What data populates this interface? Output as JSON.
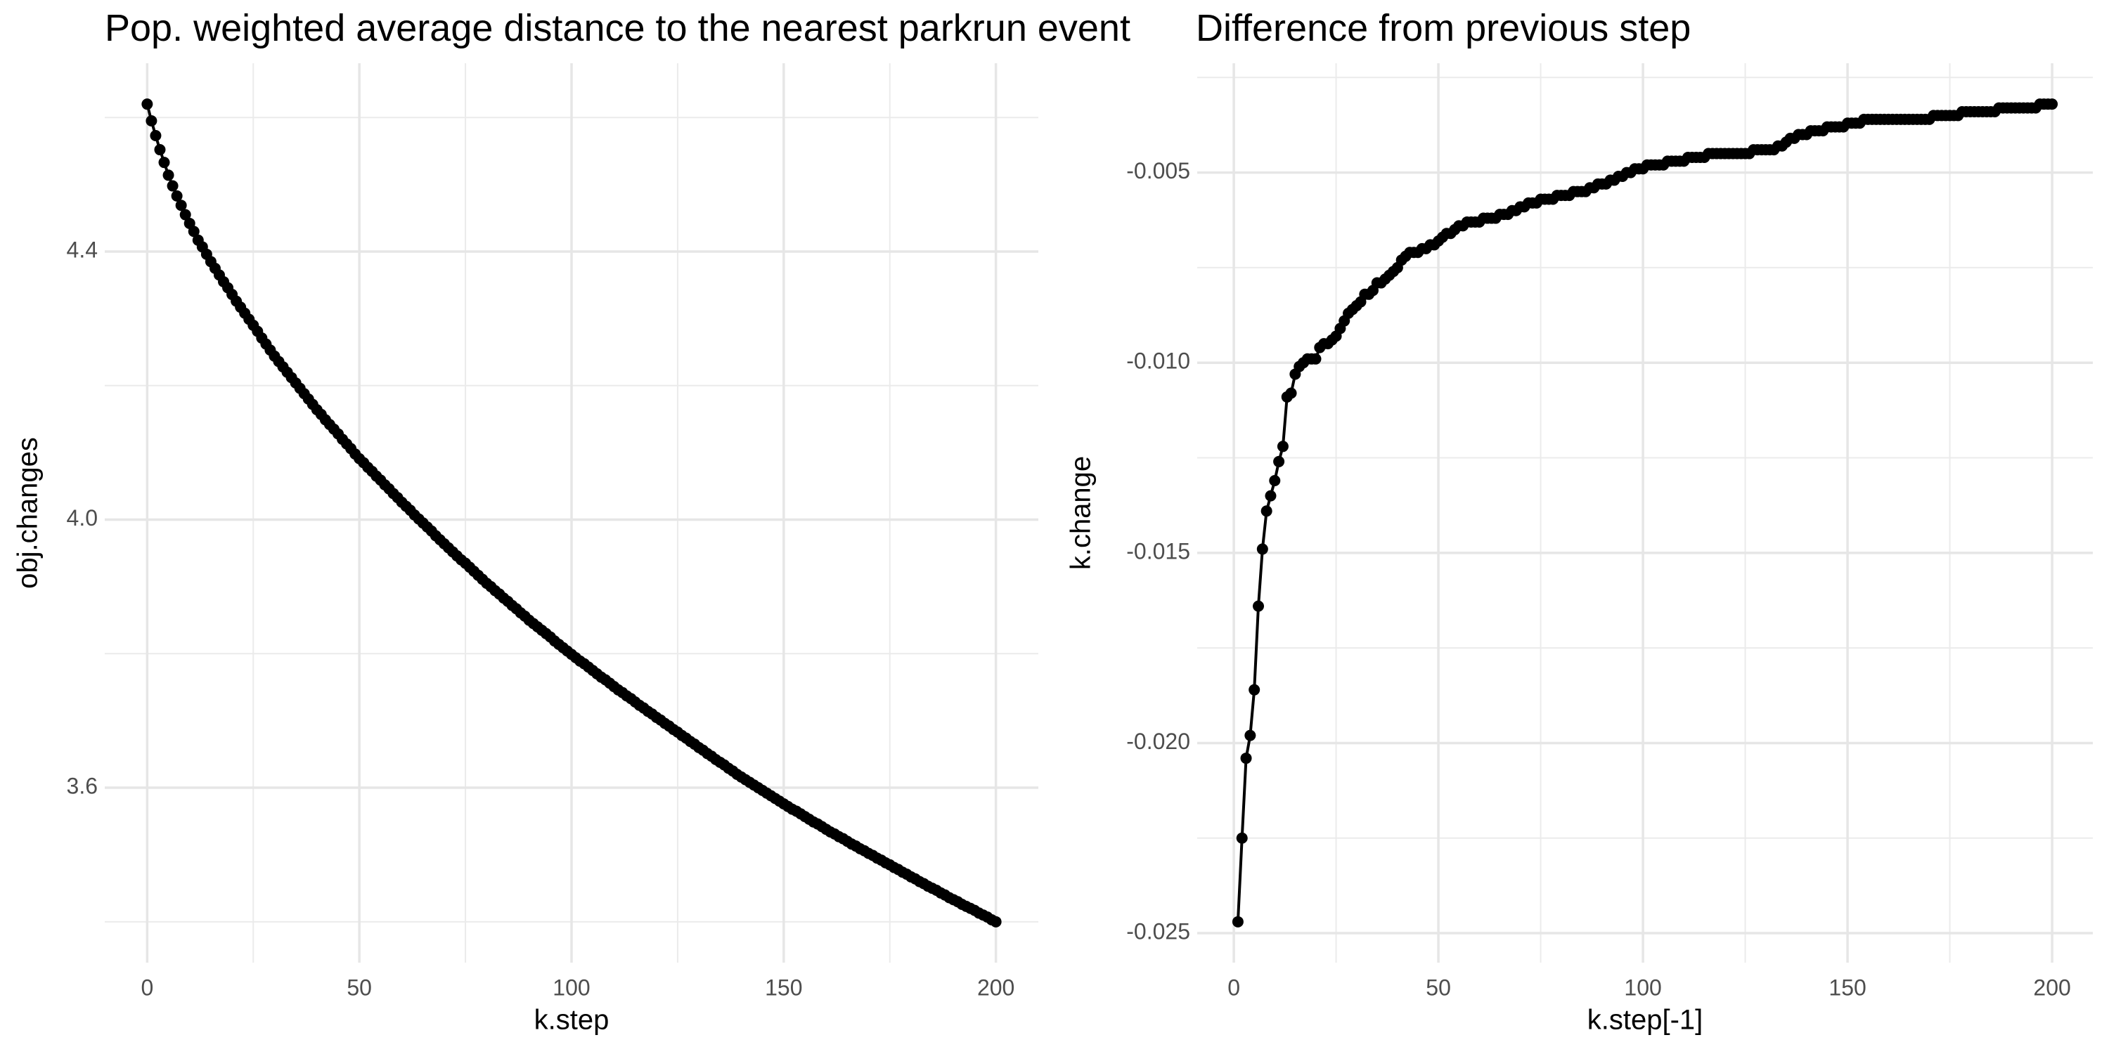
{
  "chart_data": [
    {
      "type": "line",
      "markers": true,
      "color": "#000000",
      "grid": true,
      "title": "Pop. weighted average distance to the nearest parkrun event",
      "x_label": "k.step",
      "y_label": "obj.changes",
      "xlim": [
        -10,
        210
      ],
      "ylim": [
        3.339,
        4.681
      ],
      "xticks": [
        0,
        50,
        100,
        150,
        200
      ],
      "yticks": [
        3.6,
        {
          "value": 4,
          "label": "4.0"
        },
        4.4
      ],
      "minor_xticks": [
        25,
        75,
        125,
        175
      ],
      "minor_yticks": [
        3.4,
        3.8,
        4.2,
        4.6
      ],
      "x": [
        0,
        1,
        2,
        3,
        4,
        5,
        6,
        7,
        8,
        9,
        10,
        11,
        12,
        13,
        14,
        15,
        16,
        17,
        18,
        19,
        20,
        21,
        22,
        23,
        24,
        25,
        26,
        27,
        28,
        29,
        30,
        31,
        32,
        33,
        34,
        35,
        36,
        37,
        38,
        39,
        40,
        41,
        42,
        43,
        44,
        45,
        46,
        47,
        48,
        49,
        50,
        51,
        52,
        53,
        54,
        55,
        56,
        57,
        58,
        59,
        60,
        61,
        62,
        63,
        64,
        65,
        66,
        67,
        68,
        69,
        70,
        71,
        72,
        73,
        74,
        75,
        76,
        77,
        78,
        79,
        80,
        81,
        82,
        83,
        84,
        85,
        86,
        87,
        88,
        89,
        90,
        91,
        92,
        93,
        94,
        95,
        96,
        97,
        98,
        99,
        100,
        101,
        102,
        103,
        104,
        105,
        106,
        107,
        108,
        109,
        110,
        111,
        112,
        113,
        114,
        115,
        116,
        117,
        118,
        119,
        120,
        121,
        122,
        123,
        124,
        125,
        126,
        127,
        128,
        129,
        130,
        131,
        132,
        133,
        134,
        135,
        136,
        137,
        138,
        139,
        140,
        141,
        142,
        143,
        144,
        145,
        146,
        147,
        148,
        149,
        150,
        151,
        152,
        153,
        154,
        155,
        156,
        157,
        158,
        159,
        160,
        161,
        162,
        163,
        164,
        165,
        166,
        167,
        168,
        169,
        170,
        171,
        172,
        173,
        174,
        175,
        176,
        177,
        178,
        179,
        180,
        181,
        182,
        183,
        184,
        185,
        186,
        187,
        188,
        189,
        190,
        191,
        192,
        193,
        194,
        195,
        196,
        197,
        198,
        199,
        200
      ],
      "values": [
        4.62,
        4.595,
        4.573,
        4.552,
        4.533,
        4.514,
        4.498,
        4.483,
        4.469,
        4.455,
        4.442,
        4.43,
        4.417,
        4.407,
        4.396,
        4.385,
        4.375,
        4.365,
        4.355,
        4.346,
        4.336,
        4.326,
        4.317,
        4.308,
        4.299,
        4.29,
        4.281,
        4.271,
        4.262,
        4.253,
        4.244,
        4.236,
        4.228,
        4.22,
        4.212,
        4.204,
        4.196,
        4.188,
        4.18,
        4.172,
        4.164,
        4.157,
        4.149,
        4.142,
        4.135,
        4.128,
        4.12,
        4.113,
        4.106,
        4.098,
        4.091,
        4.085,
        4.078,
        4.072,
        4.065,
        4.059,
        4.052,
        4.046,
        4.039,
        4.033,
        4.026,
        4.02,
        4.014,
        4.007,
        4.001,
        3.995,
        3.989,
        3.983,
        3.976,
        3.97,
        3.964,
        3.958,
        3.952,
        3.946,
        3.94,
        3.935,
        3.929,
        3.923,
        3.917,
        3.911,
        3.905,
        3.9,
        3.894,
        3.889,
        3.883,
        3.878,
        3.872,
        3.867,
        3.861,
        3.856,
        3.85,
        3.845,
        3.84,
        3.835,
        3.83,
        3.825,
        3.819,
        3.814,
        3.809,
        3.804,
        3.799,
        3.794,
        3.789,
        3.785,
        3.78,
        3.775,
        3.77,
        3.765,
        3.761,
        3.756,
        3.751,
        3.746,
        3.742,
        3.737,
        3.733,
        3.728,
        3.723,
        3.719,
        3.714,
        3.71,
        3.705,
        3.701,
        3.696,
        3.692,
        3.687,
        3.683,
        3.678,
        3.674,
        3.669,
        3.665,
        3.66,
        3.656,
        3.651,
        3.647,
        3.642,
        3.638,
        3.634,
        3.629,
        3.625,
        3.62,
        3.616,
        3.612,
        3.608,
        3.604,
        3.6,
        3.596,
        3.592,
        3.588,
        3.584,
        3.58,
        3.576,
        3.572,
        3.568,
        3.565,
        3.561,
        3.557,
        3.553,
        3.549,
        3.546,
        3.542,
        3.538,
        3.534,
        3.531,
        3.527,
        3.524,
        3.52,
        3.516,
        3.513,
        3.509,
        3.506,
        3.502,
        3.499,
        3.495,
        3.492,
        3.488,
        3.485,
        3.481,
        3.478,
        3.474,
        3.471,
        3.467,
        3.464,
        3.46,
        3.457,
        3.453,
        3.45,
        3.447,
        3.443,
        3.44,
        3.436,
        3.433,
        3.43,
        3.426,
        3.423,
        3.42,
        3.417,
        3.413,
        3.41,
        3.407,
        3.403,
        3.4
      ]
    },
    {
      "type": "line",
      "markers": true,
      "color": "#000000",
      "grid": true,
      "title": "Difference from previous step",
      "x_label": "k.step[-1]",
      "y_label": "k.change",
      "xlim": [
        -8.95,
        209.95
      ],
      "ylim": [
        -0.025775,
        -0.002125
      ],
      "xticks": [
        0,
        50,
        100,
        150,
        200
      ],
      "yticks": [
        -0.025,
        {
          "value": -0.02,
          "label": "-0.020"
        },
        -0.015,
        {
          "value": -0.01,
          "label": "-0.010"
        },
        -0.005
      ],
      "minor_xticks": [
        25,
        75,
        125,
        175
      ],
      "minor_yticks": [
        -0.0225,
        -0.0175,
        -0.0125,
        -0.0075,
        -0.0025
      ],
      "x": [
        1,
        2,
        3,
        4,
        5,
        6,
        7,
        8,
        9,
        10,
        11,
        12,
        13,
        14,
        15,
        16,
        17,
        18,
        19,
        20,
        21,
        22,
        23,
        24,
        25,
        26,
        27,
        28,
        29,
        30,
        31,
        32,
        33,
        34,
        35,
        36,
        37,
        38,
        39,
        40,
        41,
        42,
        43,
        44,
        45,
        46,
        47,
        48,
        49,
        50,
        51,
        52,
        53,
        54,
        55,
        56,
        57,
        58,
        59,
        60,
        61,
        62,
        63,
        64,
        65,
        66,
        67,
        68,
        69,
        70,
        71,
        72,
        73,
        74,
        75,
        76,
        77,
        78,
        79,
        80,
        81,
        82,
        83,
        84,
        85,
        86,
        87,
        88,
        89,
        90,
        91,
        92,
        93,
        94,
        95,
        96,
        97,
        98,
        99,
        100,
        101,
        102,
        103,
        104,
        105,
        106,
        107,
        108,
        109,
        110,
        111,
        112,
        113,
        114,
        115,
        116,
        117,
        118,
        119,
        120,
        121,
        122,
        123,
        124,
        125,
        126,
        127,
        128,
        129,
        130,
        131,
        132,
        133,
        134,
        135,
        136,
        137,
        138,
        139,
        140,
        141,
        142,
        143,
        144,
        145,
        146,
        147,
        148,
        149,
        150,
        151,
        152,
        153,
        154,
        155,
        156,
        157,
        158,
        159,
        160,
        161,
        162,
        163,
        164,
        165,
        166,
        167,
        168,
        169,
        170,
        171,
        172,
        173,
        174,
        175,
        176,
        177,
        178,
        179,
        180,
        181,
        182,
        183,
        184,
        185,
        186,
        187,
        188,
        189,
        190,
        191,
        192,
        193,
        194,
        195,
        196,
        197,
        198,
        199,
        200
      ],
      "values": [
        -0.0247,
        -0.0225,
        -0.0204,
        -0.0198,
        -0.0186,
        -0.0164,
        -0.0149,
        -0.0139,
        -0.0135,
        -0.0131,
        -0.0126,
        -0.0122,
        -0.0109,
        -0.0108,
        -0.0103,
        -0.0101,
        -0.01,
        -0.0099,
        -0.0099,
        -0.0099,
        -0.0096,
        -0.0095,
        -0.0095,
        -0.0094,
        -0.0093,
        -0.0091,
        -0.0089,
        -0.0087,
        -0.0086,
        -0.0085,
        -0.0084,
        -0.0082,
        -0.0082,
        -0.0081,
        -0.0079,
        -0.0079,
        -0.0078,
        -0.0077,
        -0.0076,
        -0.0075,
        -0.0073,
        -0.0072,
        -0.0071,
        -0.0071,
        -0.0071,
        -0.007,
        -0.007,
        -0.0069,
        -0.0069,
        -0.0068,
        -0.0067,
        -0.0066,
        -0.0066,
        -0.0065,
        -0.0064,
        -0.0064,
        -0.0063,
        -0.0063,
        -0.0063,
        -0.0063,
        -0.0062,
        -0.0062,
        -0.0062,
        -0.0062,
        -0.0061,
        -0.0061,
        -0.0061,
        -0.006,
        -0.006,
        -0.0059,
        -0.0059,
        -0.0058,
        -0.0058,
        -0.0058,
        -0.0057,
        -0.0057,
        -0.0057,
        -0.0057,
        -0.0056,
        -0.0056,
        -0.0056,
        -0.0056,
        -0.0055,
        -0.0055,
        -0.0055,
        -0.0055,
        -0.0054,
        -0.0054,
        -0.0053,
        -0.0053,
        -0.0053,
        -0.0052,
        -0.0052,
        -0.0051,
        -0.0051,
        -0.005,
        -0.005,
        -0.0049,
        -0.0049,
        -0.0049,
        -0.0048,
        -0.0048,
        -0.0048,
        -0.0048,
        -0.0048,
        -0.0047,
        -0.0047,
        -0.0047,
        -0.0047,
        -0.0047,
        -0.0046,
        -0.0046,
        -0.0046,
        -0.0046,
        -0.0046,
        -0.0045,
        -0.0045,
        -0.0045,
        -0.0045,
        -0.0045,
        -0.0045,
        -0.0045,
        -0.0045,
        -0.0045,
        -0.0045,
        -0.0045,
        -0.0044,
        -0.0044,
        -0.0044,
        -0.0044,
        -0.0044,
        -0.0044,
        -0.0043,
        -0.0043,
        -0.0042,
        -0.0041,
        -0.0041,
        -0.004,
        -0.004,
        -0.004,
        -0.0039,
        -0.0039,
        -0.0039,
        -0.0039,
        -0.0038,
        -0.0038,
        -0.0038,
        -0.0038,
        -0.0038,
        -0.0037,
        -0.0037,
        -0.0037,
        -0.0037,
        -0.0036,
        -0.0036,
        -0.0036,
        -0.0036,
        -0.0036,
        -0.0036,
        -0.0036,
        -0.0036,
        -0.0036,
        -0.0036,
        -0.0036,
        -0.0036,
        -0.0036,
        -0.0036,
        -0.0036,
        -0.0036,
        -0.0036,
        -0.0035,
        -0.0035,
        -0.0035,
        -0.0035,
        -0.0035,
        -0.0035,
        -0.0035,
        -0.0034,
        -0.0034,
        -0.0034,
        -0.0034,
        -0.0034,
        -0.0034,
        -0.0034,
        -0.0034,
        -0.0034,
        -0.0033,
        -0.0033,
        -0.0033,
        -0.0033,
        -0.0033,
        -0.0033,
        -0.0033,
        -0.0033,
        -0.0033,
        -0.0033,
        -0.0032,
        -0.0032,
        -0.0032,
        -0.0032
      ]
    }
  ]
}
